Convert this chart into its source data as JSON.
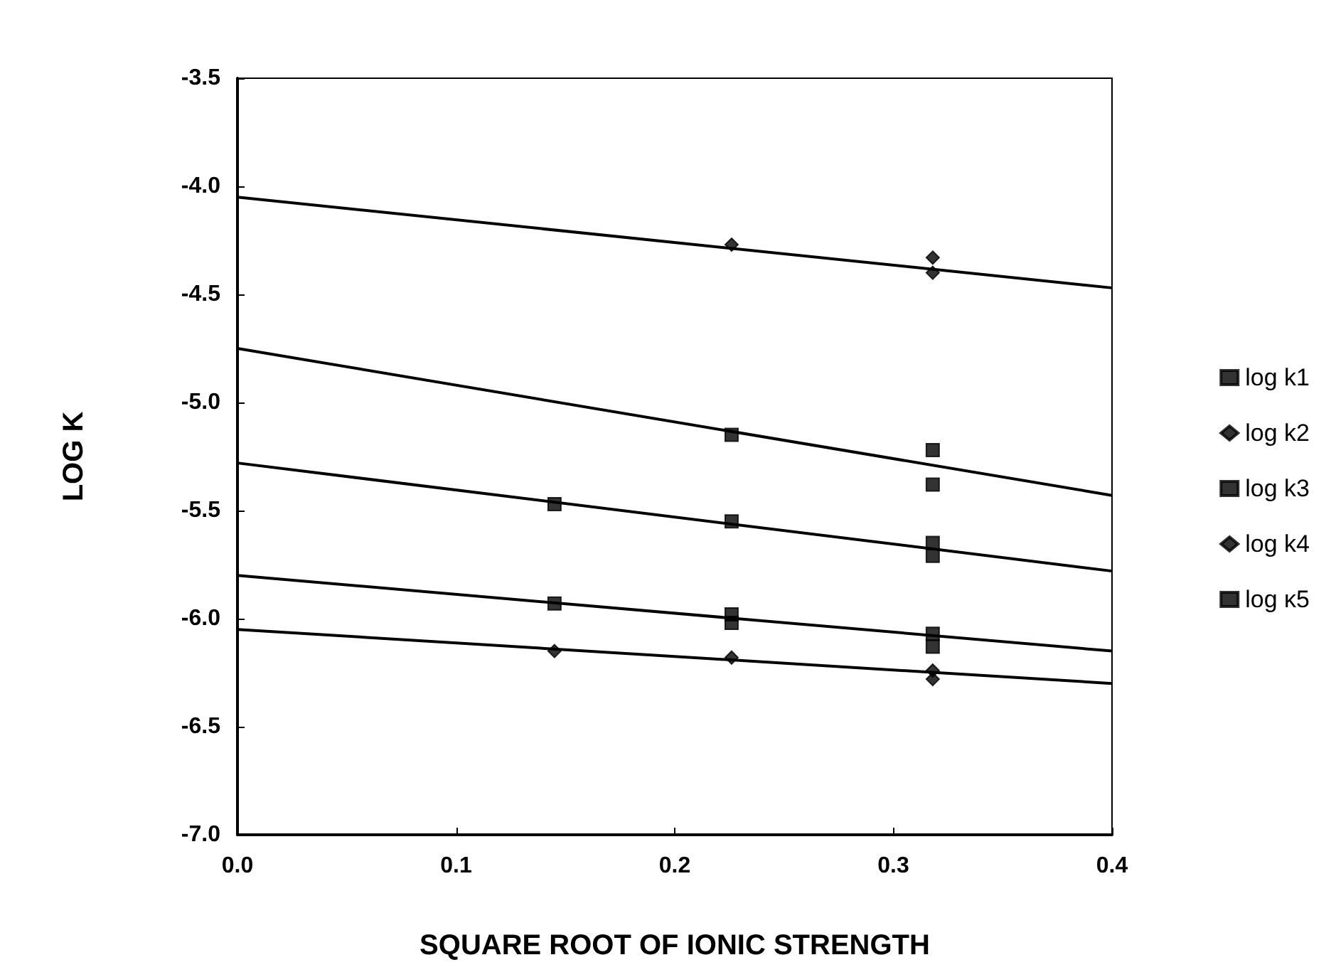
{
  "chart_data": {
    "type": "scatter",
    "xlabel": "SQUARE ROOT OF IONIC STRENGTH",
    "ylabel": "LOG K",
    "xlim": [
      0,
      0.4
    ],
    "xticks": [
      {
        "value": 0,
        "label": "0.0"
      },
      {
        "value": 0.1,
        "label": "0.1"
      },
      {
        "value": 0.2,
        "label": "0.2"
      },
      {
        "value": 0.3,
        "label": "0.3"
      },
      {
        "value": 0.4,
        "label": "0.4"
      }
    ],
    "ylim": [
      -7,
      -3.5
    ],
    "yticks": [
      {
        "value": -7,
        "label": "-7.0"
      },
      {
        "value": -6.5,
        "label": "-6.5"
      },
      {
        "value": -6,
        "label": "-6.0"
      },
      {
        "value": -5.5,
        "label": "-5.5"
      },
      {
        "value": -5,
        "label": "-5.0"
      },
      {
        "value": -4.5,
        "label": "-4.5"
      },
      {
        "value": -4,
        "label": "-4.0"
      },
      {
        "value": -3.5,
        "label": "-3.5"
      }
    ],
    "grid": false,
    "legend": "right",
    "series": [
      {
        "name": "log k1",
        "color": "#000000",
        "marker": "square",
        "x": [
          0.145,
          0.226,
          0.318,
          0.318
        ],
        "values": [
          -5.47,
          -5.55,
          -5.65,
          -5.71
        ]
      },
      {
        "name": "log k2",
        "color": "#000000",
        "marker": "diamond",
        "x": [
          0.226,
          0.318,
          0.318
        ],
        "values": [
          -4.27,
          -4.33,
          -4.4
        ]
      },
      {
        "name": "log k3",
        "color": "#000000",
        "marker": "square",
        "x": [
          0.226,
          0.318,
          0.318
        ],
        "values": [
          -5.15,
          -5.22,
          -5.38
        ]
      },
      {
        "name": "log k4",
        "color": "#000000",
        "marker": "diamond",
        "x": [
          0.145,
          0.226,
          0.318,
          0.318
        ],
        "values": [
          -6.15,
          -6.18,
          -6.24,
          -6.28
        ]
      },
      {
        "name": "log κ5",
        "color": "#000000",
        "marker": "square",
        "x": [
          0.145,
          0.226,
          0.226,
          0.318,
          0.318
        ],
        "values": [
          -5.93,
          -5.98,
          -6.02,
          -6.07,
          -6.13
        ]
      },
      {
        "type": "line",
        "color": "#000000",
        "marker": "none",
        "x": [
          0,
          0.4
        ],
        "values": [
          -4.05,
          -4.47
        ]
      },
      {
        "type": "line",
        "color": "#000000",
        "marker": "none",
        "x": [
          0,
          0.4
        ],
        "values": [
          -4.75,
          -5.43
        ]
      },
      {
        "type": "line",
        "color": "#000000",
        "marker": "none",
        "x": [
          0,
          0.4
        ],
        "values": [
          -5.28,
          -5.78
        ]
      },
      {
        "type": "line",
        "color": "#000000",
        "marker": "none",
        "x": [
          0,
          0.4
        ],
        "values": [
          -5.8,
          -6.15
        ]
      },
      {
        "type": "line",
        "color": "#000000",
        "marker": "none",
        "x": [
          0,
          0.4
        ],
        "values": [
          -6.05,
          -6.3
        ]
      }
    ]
  }
}
